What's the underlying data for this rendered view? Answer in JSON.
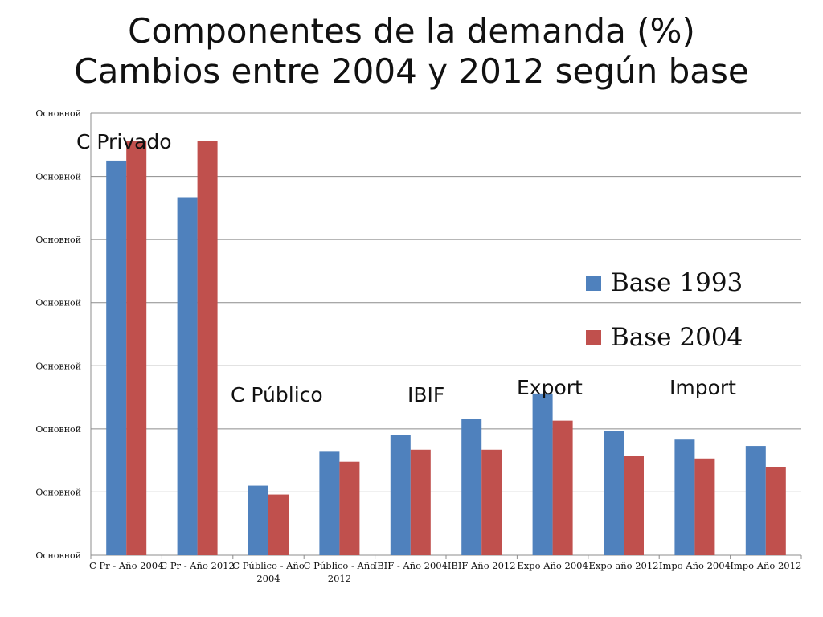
{
  "slide": {
    "title_line1": "Componentes de la demanda (%)",
    "title_line2": "Cambios entre 2004 y 2012 según base"
  },
  "callouts": {
    "privado": "C Privado",
    "publico": "C Público",
    "ibif": "IBIF",
    "export": "Export",
    "import": "Import"
  },
  "colors": {
    "base1993": "#4f81bd",
    "base2004": "#c0504d",
    "grid": "#8c8c8c"
  },
  "chart_data": {
    "type": "bar",
    "title": "Componentes de la demanda (%) Cambios entre 2004 y 2012 según base",
    "categories": [
      "C Pr - Año 2004",
      "C Pr - Año 2012",
      "C Público - Año 2004",
      "C Público - Año 2012",
      "IBIF - Año 2004",
      "IBIF Año 2012",
      "Expo Año 2004",
      "Expo año 2012",
      "Impo Año 2004",
      "Impo Año 2012"
    ],
    "series": [
      {
        "name": "Base 1993",
        "values": [
          62.5,
          56.7,
          11.0,
          16.5,
          19.0,
          21.6,
          25.6,
          19.6,
          18.3,
          17.3
        ]
      },
      {
        "name": "Base 2004",
        "values": [
          65.6,
          65.6,
          9.6,
          14.8,
          16.7,
          16.7,
          21.3,
          15.7,
          15.3,
          14.0
        ]
      }
    ],
    "yticks": [
      "Основной",
      "Основной",
      "Основной",
      "Основной",
      "Основной",
      "Основной",
      "Основной",
      "Основной"
    ],
    "ylim": [
      0,
      70
    ],
    "grid": true,
    "legend_position": "right"
  }
}
